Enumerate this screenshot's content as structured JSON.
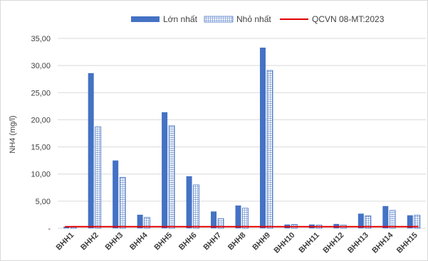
{
  "chart_data": {
    "type": "bar",
    "title": "",
    "xlabel": "",
    "ylabel": "NH4 (mg/l)",
    "ylim": [
      0,
      35
    ],
    "yticks": [
      0,
      5,
      10,
      15,
      20,
      25,
      30,
      35
    ],
    "ytick_labels": [
      "-",
      "5,00",
      "10,00",
      "15,00",
      "20,00",
      "25,00",
      "30,00",
      "35,00"
    ],
    "grid": true,
    "legend_position": "top",
    "categories": [
      "BHH1",
      "BHH2",
      "BHH3",
      "BHH4",
      "BHH5",
      "BHH6",
      "BHH7",
      "BHH8",
      "BHH9",
      "BHH10",
      "BHH11",
      "BHH12",
      "BHH13",
      "BHH14",
      "BHH15"
    ],
    "series": [
      {
        "name": "Lớn nhất",
        "style": "solid",
        "color": "#4472c4",
        "values": [
          0.3,
          28.6,
          12.5,
          2.5,
          21.4,
          9.6,
          3.1,
          4.2,
          33.3,
          0.7,
          0.7,
          0.8,
          2.7,
          4.1,
          2.4
        ]
      },
      {
        "name": "Nhỏ nhất",
        "style": "grid-pattern",
        "color": "#4472c4",
        "values": [
          0.2,
          18.7,
          9.4,
          2.0,
          18.9,
          8.0,
          1.8,
          3.7,
          29.1,
          0.7,
          0.6,
          0.6,
          2.3,
          3.3,
          2.4
        ]
      },
      {
        "name": "QCVN 08-MT:2023",
        "style": "line",
        "color": "#e00000",
        "values": [
          0.3,
          0.3,
          0.3,
          0.3,
          0.3,
          0.3,
          0.3,
          0.3,
          0.3,
          0.3,
          0.3,
          0.3,
          0.3,
          0.3,
          0.3
        ]
      }
    ]
  }
}
